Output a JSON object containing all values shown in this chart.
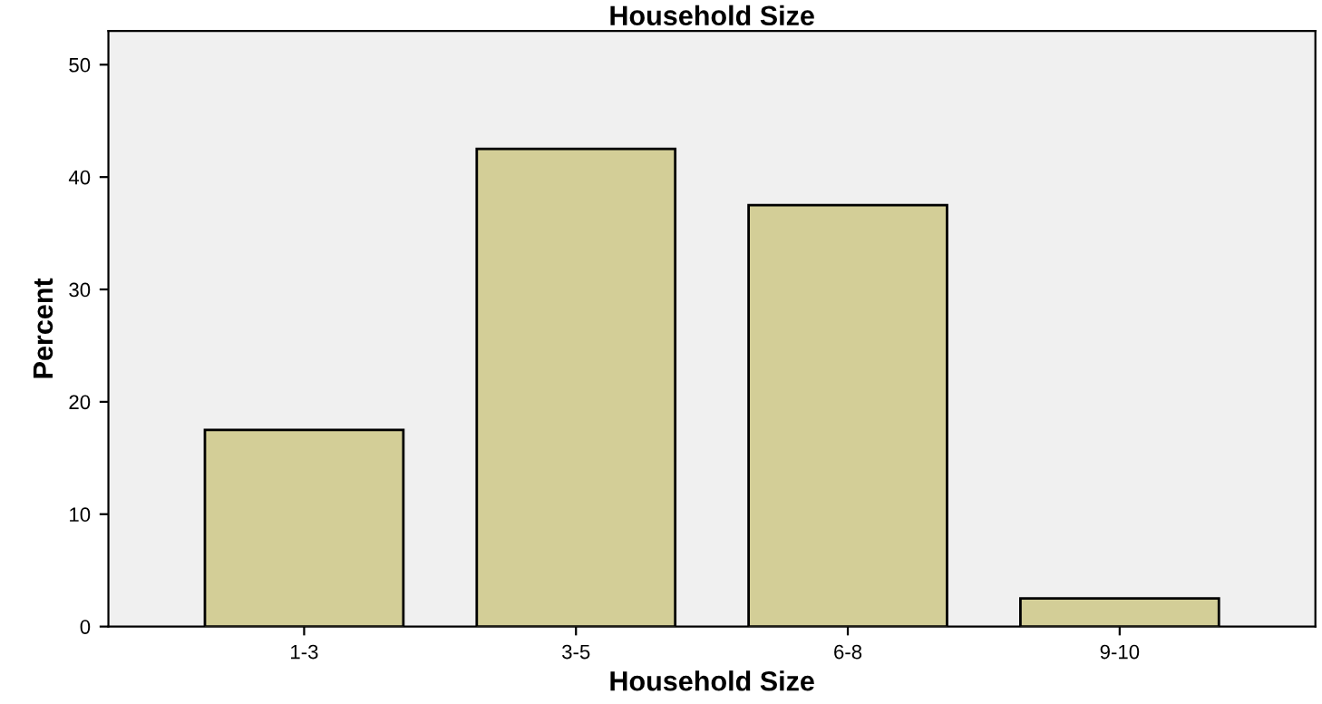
{
  "chart_data": {
    "type": "bar",
    "title": "Household Size",
    "xlabel": "Household Size",
    "ylabel": "Percent",
    "categories": [
      "1-3",
      "3-5",
      "6-8",
      "9-10"
    ],
    "values": [
      17.5,
      42.5,
      37.5,
      2.5
    ],
    "color": "#d3ce97",
    "ylim": [
      0,
      53
    ],
    "yticks": [
      0,
      10,
      20,
      30,
      40,
      50
    ],
    "grid": false,
    "legend": false
  }
}
